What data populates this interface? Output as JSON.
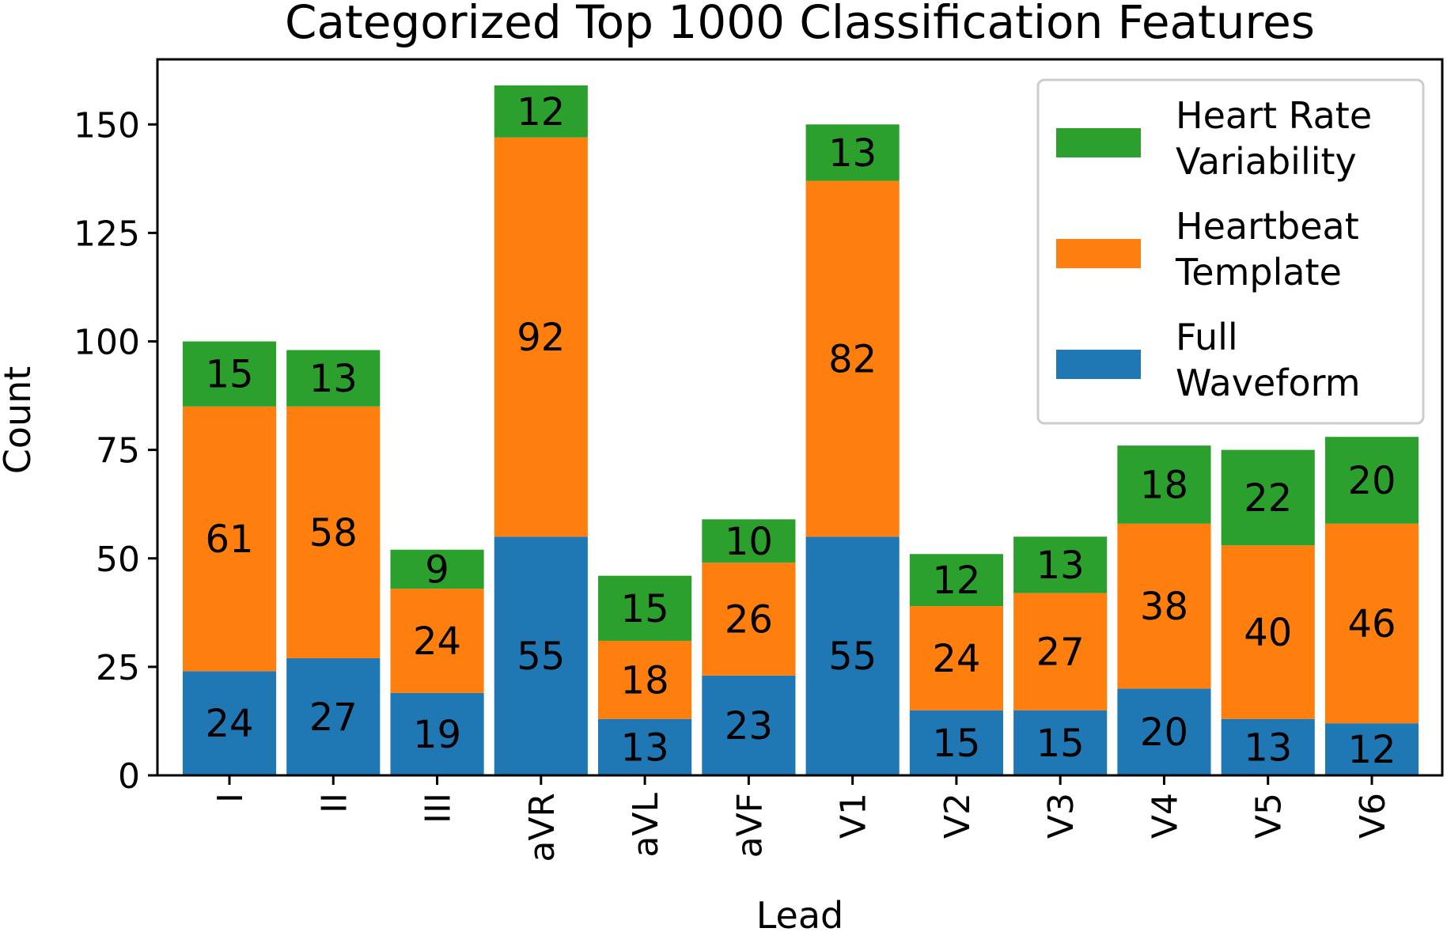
{
  "chart_data": {
    "type": "bar",
    "stacked": true,
    "title": "Categorized Top 1000 Classification Features",
    "xlabel": "Lead",
    "ylabel": "Count",
    "categories": [
      "I",
      "II",
      "III",
      "aVR",
      "aVL",
      "aVF",
      "V1",
      "V2",
      "V3",
      "V4",
      "V5",
      "V6"
    ],
    "ylim": [
      0,
      165
    ],
    "yticks": [
      0,
      25,
      50,
      75,
      100,
      125,
      150
    ],
    "series": [
      {
        "name": "Full Waveform",
        "color": "#1f77b4",
        "values": [
          24,
          27,
          19,
          55,
          13,
          23,
          55,
          15,
          15,
          20,
          13,
          12
        ]
      },
      {
        "name": "Heartbeat Template",
        "color": "#ff7f0e",
        "values": [
          61,
          58,
          24,
          92,
          18,
          26,
          82,
          24,
          27,
          38,
          40,
          46
        ]
      },
      {
        "name": "Heart Rate Variability",
        "color": "#2ca02c",
        "values": [
          15,
          13,
          9,
          12,
          15,
          10,
          13,
          12,
          13,
          18,
          22,
          20
        ]
      }
    ],
    "legend": {
      "position": "top-right",
      "entries": [
        {
          "series": 2,
          "lines": [
            "Heart Rate",
            "Variability"
          ]
        },
        {
          "series": 1,
          "lines": [
            "Heartbeat",
            "Template"
          ]
        },
        {
          "series": 0,
          "lines": [
            "Full",
            "Waveform"
          ]
        }
      ]
    },
    "grid": false,
    "bar_labels": true
  }
}
